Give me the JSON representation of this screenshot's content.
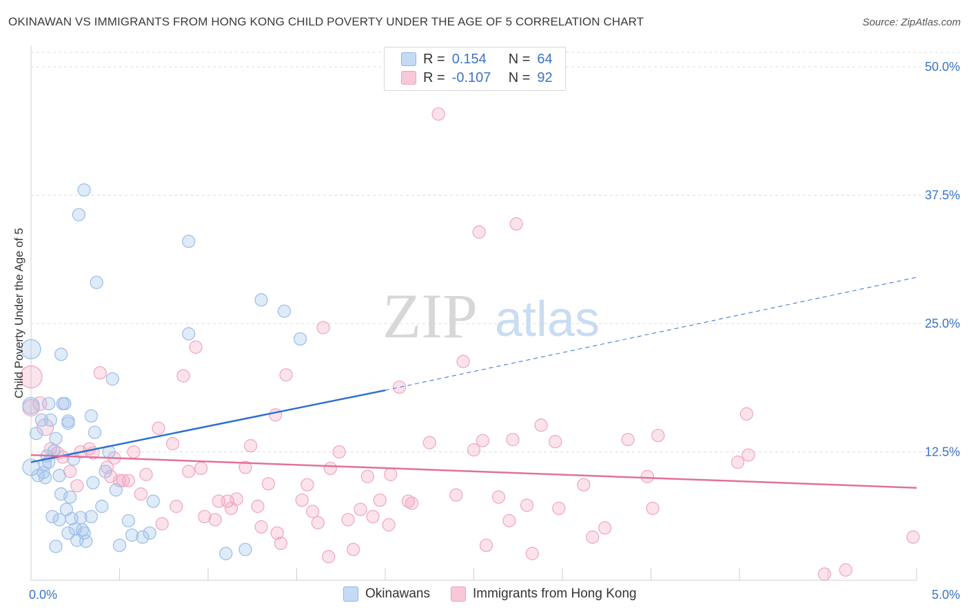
{
  "title": "OKINAWAN VS IMMIGRANTS FROM HONG KONG CHILD POVERTY UNDER THE AGE OF 5 CORRELATION CHART",
  "source": "Source: ZipAtlas.com",
  "watermark": {
    "zip": "ZIP",
    "atlas": "atlas"
  },
  "legend_stats": [
    {
      "r_label": "R =",
      "r_value": "0.154",
      "n_label": "N =",
      "n_value": "64",
      "color": "#9ec0ea"
    },
    {
      "r_label": "R =",
      "r_value": "-0.107",
      "n_label": "N =",
      "n_value": "92",
      "color": "#f2a9c2"
    }
  ],
  "chart_data": {
    "type": "scatter",
    "title": "OKINAWAN VS IMMIGRANTS FROM HONG KONG CHILD POVERTY UNDER THE AGE OF 5 CORRELATION CHART",
    "xlabel": "",
    "ylabel": "Child Poverty Under the Age of 5",
    "xlim": [
      0,
      5
    ],
    "ylim": [
      0,
      52
    ],
    "x_tick_labels": [
      {
        "value": 0,
        "label": "0.0%"
      },
      {
        "value": 5,
        "label": "5.0%"
      }
    ],
    "y_tick_labels": [
      {
        "value": 12.5,
        "label": "12.5%"
      },
      {
        "value": 25,
        "label": "25.0%"
      },
      {
        "value": 37.5,
        "label": "37.5%"
      },
      {
        "value": 50,
        "label": "50.0%"
      }
    ],
    "series": [
      {
        "name": "Okinawans",
        "color": "#9ec0ea",
        "line_color": "#2f6fcf",
        "trend": {
          "x0": 0,
          "y0": 11.5,
          "x1": 2,
          "y1": 18.5,
          "x_ext": 5,
          "y_ext": 29.5
        },
        "points": [
          [
            0.0,
            22.5,
            14
          ],
          [
            0.0,
            17.0,
            12
          ],
          [
            0.0,
            11.0,
            12
          ],
          [
            0.03,
            14.3,
            9
          ],
          [
            0.04,
            10.2,
            9
          ],
          [
            0.06,
            15.6,
            9
          ],
          [
            0.07,
            10.5,
            9
          ],
          [
            0.08,
            10.0,
            9
          ],
          [
            0.08,
            11.3,
            9
          ],
          [
            0.09,
            12.1,
            9
          ],
          [
            0.1,
            11.5,
            9
          ],
          [
            0.1,
            17.2,
            9
          ],
          [
            0.11,
            15.6,
            9
          ],
          [
            0.12,
            6.2,
            9
          ],
          [
            0.13,
            12.6,
            9
          ],
          [
            0.14,
            13.8,
            9
          ],
          [
            0.14,
            3.3,
            9
          ],
          [
            0.16,
            5.9,
            9
          ],
          [
            0.16,
            10.2,
            9
          ],
          [
            0.17,
            22.0,
            9
          ],
          [
            0.17,
            8.4,
            9
          ],
          [
            0.18,
            17.2,
            9
          ],
          [
            0.19,
            17.2,
            9
          ],
          [
            0.2,
            6.9,
            9
          ],
          [
            0.21,
            15.5,
            9
          ],
          [
            0.21,
            15.3,
            9
          ],
          [
            0.21,
            4.6,
            9
          ],
          [
            0.22,
            8.1,
            9
          ],
          [
            0.23,
            6.0,
            9
          ],
          [
            0.24,
            11.8,
            9
          ],
          [
            0.25,
            5.0,
            9
          ],
          [
            0.26,
            3.9,
            9
          ],
          [
            0.27,
            35.6,
            9
          ],
          [
            0.28,
            6.1,
            9
          ],
          [
            0.29,
            4.9,
            9
          ],
          [
            0.3,
            38.0,
            9
          ],
          [
            0.3,
            4.6,
            9
          ],
          [
            0.31,
            3.8,
            9
          ],
          [
            0.34,
            6.2,
            9
          ],
          [
            0.34,
            16.0,
            9
          ],
          [
            0.35,
            9.5,
            9
          ],
          [
            0.36,
            14.4,
            9
          ],
          [
            0.37,
            29.0,
            9
          ],
          [
            0.4,
            7.2,
            9
          ],
          [
            0.42,
            10.6,
            9
          ],
          [
            0.44,
            12.5,
            9
          ],
          [
            0.46,
            19.6,
            9
          ],
          [
            0.48,
            8.8,
            9
          ],
          [
            0.5,
            3.4,
            9
          ],
          [
            0.55,
            5.8,
            9
          ],
          [
            0.57,
            4.4,
            9
          ],
          [
            0.63,
            4.2,
            9
          ],
          [
            0.67,
            4.6,
            9
          ],
          [
            0.69,
            7.7,
            9
          ],
          [
            0.89,
            33.0,
            9
          ],
          [
            0.89,
            24.0,
            9
          ],
          [
            1.1,
            2.6,
            9
          ],
          [
            1.21,
            3.0,
            9
          ],
          [
            1.3,
            27.3,
            9
          ],
          [
            1.43,
            26.2,
            9
          ],
          [
            1.52,
            23.5,
            9
          ]
        ]
      },
      {
        "name": "Immigrants from Hong Kong",
        "color": "#f2a9c2",
        "line_color": "#e2709a",
        "trend": {
          "x0": 0,
          "y0": 12.2,
          "x1": 5,
          "y1": 9.0
        },
        "points": [
          [
            0.0,
            19.8,
            16
          ],
          [
            0.0,
            16.8,
            12
          ],
          [
            0.05,
            17.2,
            10
          ],
          [
            0.08,
            14.9,
            12
          ],
          [
            0.11,
            12.8,
            9
          ],
          [
            0.15,
            12.4,
            9
          ],
          [
            0.18,
            12.0,
            9
          ],
          [
            0.22,
            10.6,
            9
          ],
          [
            0.26,
            9.2,
            9
          ],
          [
            0.28,
            12.5,
            9
          ],
          [
            0.33,
            12.8,
            9
          ],
          [
            0.35,
            12.4,
            9
          ],
          [
            0.39,
            20.2,
            9
          ],
          [
            0.43,
            11.0,
            9
          ],
          [
            0.45,
            10.1,
            9
          ],
          [
            0.47,
            11.9,
            9
          ],
          [
            0.5,
            9.7,
            9
          ],
          [
            0.52,
            9.7,
            9
          ],
          [
            0.55,
            9.7,
            9
          ],
          [
            0.58,
            12.5,
            9
          ],
          [
            0.62,
            8.4,
            9
          ],
          [
            0.65,
            10.3,
            9
          ],
          [
            0.72,
            14.8,
            9
          ],
          [
            0.74,
            5.5,
            9
          ],
          [
            0.8,
            13.3,
            9
          ],
          [
            0.82,
            7.2,
            9
          ],
          [
            0.86,
            19.9,
            9
          ],
          [
            0.89,
            10.6,
            9
          ],
          [
            0.93,
            22.7,
            9
          ],
          [
            0.96,
            10.9,
            9
          ],
          [
            0.98,
            6.2,
            9
          ],
          [
            1.04,
            5.9,
            9
          ],
          [
            1.06,
            7.7,
            9
          ],
          [
            1.11,
            7.7,
            9
          ],
          [
            1.13,
            7.0,
            9
          ],
          [
            1.16,
            7.9,
            9
          ],
          [
            1.21,
            11.0,
            9
          ],
          [
            1.24,
            13.1,
            9
          ],
          [
            1.28,
            7.2,
            9
          ],
          [
            1.3,
            5.2,
            9
          ],
          [
            1.34,
            9.4,
            9
          ],
          [
            1.38,
            16.1,
            9
          ],
          [
            1.39,
            4.6,
            9
          ],
          [
            1.41,
            3.6,
            9
          ],
          [
            1.44,
            20.0,
            9
          ],
          [
            1.53,
            7.8,
            9
          ],
          [
            1.56,
            9.3,
            9
          ],
          [
            1.59,
            6.7,
            9
          ],
          [
            1.62,
            5.6,
            9
          ],
          [
            1.65,
            24.6,
            9
          ],
          [
            1.68,
            2.3,
            9
          ],
          [
            1.69,
            10.9,
            9
          ],
          [
            1.74,
            12.5,
            9
          ],
          [
            1.79,
            5.9,
            9
          ],
          [
            1.82,
            3.0,
            9
          ],
          [
            1.86,
            6.9,
            9
          ],
          [
            1.9,
            10.1,
            9
          ],
          [
            1.93,
            6.2,
            9
          ],
          [
            1.97,
            7.8,
            9
          ],
          [
            2.02,
            5.4,
            9
          ],
          [
            2.03,
            10.3,
            9
          ],
          [
            2.08,
            18.8,
            9
          ],
          [
            2.13,
            7.7,
            9
          ],
          [
            2.15,
            7.5,
            9
          ],
          [
            2.25,
            13.4,
            9
          ],
          [
            2.3,
            45.4,
            9
          ],
          [
            2.4,
            8.3,
            9
          ],
          [
            2.44,
            21.3,
            9
          ],
          [
            2.5,
            12.7,
            9
          ],
          [
            2.53,
            33.9,
            9
          ],
          [
            2.55,
            13.6,
            9
          ],
          [
            2.57,
            3.4,
            9
          ],
          [
            2.64,
            8.1,
            9
          ],
          [
            2.7,
            5.8,
            9
          ],
          [
            2.72,
            13.7,
            9
          ],
          [
            2.74,
            34.7,
            9
          ],
          [
            2.8,
            7.3,
            9
          ],
          [
            2.83,
            2.6,
            9
          ],
          [
            2.88,
            15.1,
            9
          ],
          [
            2.96,
            13.5,
            9
          ],
          [
            2.98,
            7.0,
            9
          ],
          [
            3.12,
            9.3,
            9
          ],
          [
            3.17,
            4.2,
            9
          ],
          [
            3.24,
            5.1,
            9
          ],
          [
            3.37,
            13.7,
            9
          ],
          [
            3.48,
            10.1,
            9
          ],
          [
            3.51,
            7.0,
            9
          ],
          [
            3.54,
            14.1,
            9
          ],
          [
            3.99,
            11.5,
            9
          ],
          [
            4.04,
            16.2,
            9
          ],
          [
            4.05,
            12.2,
            9
          ],
          [
            4.48,
            0.6,
            9
          ],
          [
            4.6,
            1.0,
            9
          ],
          [
            4.98,
            4.2,
            9
          ]
        ]
      }
    ]
  }
}
